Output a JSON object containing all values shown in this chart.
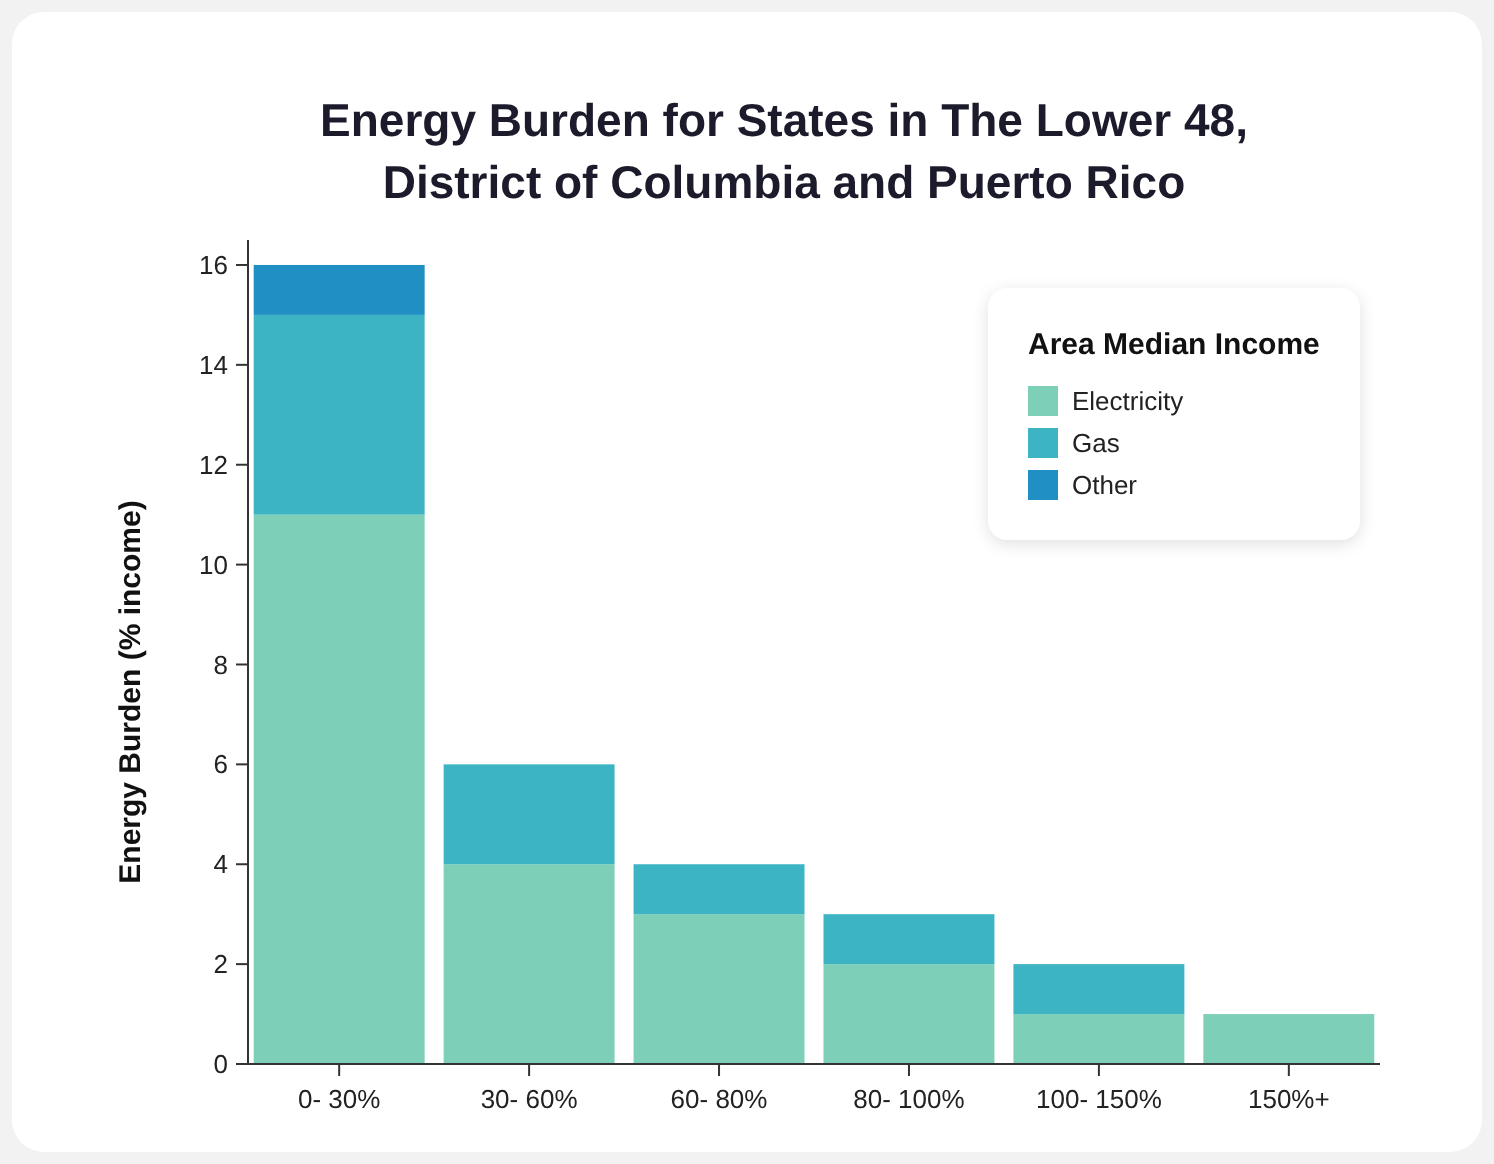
{
  "chart_data": {
    "type": "bar",
    "title": "Energy Burden for States in The Lower 48,\nDistrict of Columbia and Puerto Rico",
    "ylabel": "Energy Burden (% income)",
    "legend_title": "Area Median Income",
    "categories": [
      "0- 30%",
      "30- 60%",
      "60- 80%",
      "80- 100%",
      "100- 150%",
      "150%+"
    ],
    "stacked": true,
    "series": [
      {
        "name": "Electricity",
        "color": "#7ecfb8",
        "values": [
          11,
          4,
          3,
          2,
          1,
          1
        ]
      },
      {
        "name": "Gas",
        "color": "#3cb4c4",
        "values": [
          4,
          2,
          1,
          1,
          1,
          0
        ]
      },
      {
        "name": "Other",
        "color": "#1f8fc4",
        "values": [
          1,
          0,
          0,
          0,
          0,
          0
        ]
      }
    ],
    "ylim": [
      0,
      16.5
    ],
    "yticks": [
      0,
      2,
      4,
      6,
      8,
      10,
      12,
      14,
      16
    ],
    "legend": "top right",
    "grid": false
  }
}
